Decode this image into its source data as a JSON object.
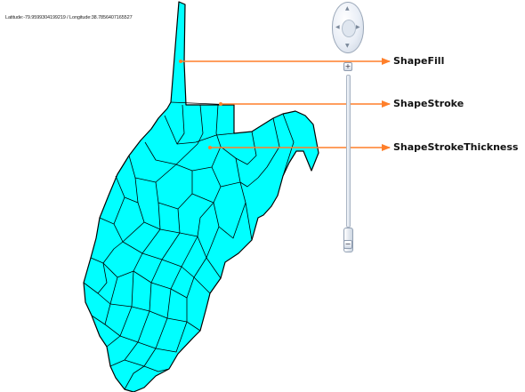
{
  "coordinate_readout": "Latitude:-79.9599304199219 / Longitude:38.7856407165527",
  "annotations": [
    {
      "label": "ShapeFill"
    },
    {
      "label": "ShapeStroke"
    },
    {
      "label": "ShapeStrokeThickness"
    }
  ],
  "map": {
    "region": "West Virginia counties",
    "shape_fill": "#00ffff",
    "shape_stroke": "#000000",
    "annotation_color": "#ff7f2a"
  },
  "navigation": {
    "pan_icon": "pan-ring-icon",
    "zoom_in_label": "+",
    "zoom_out_label": "−"
  }
}
